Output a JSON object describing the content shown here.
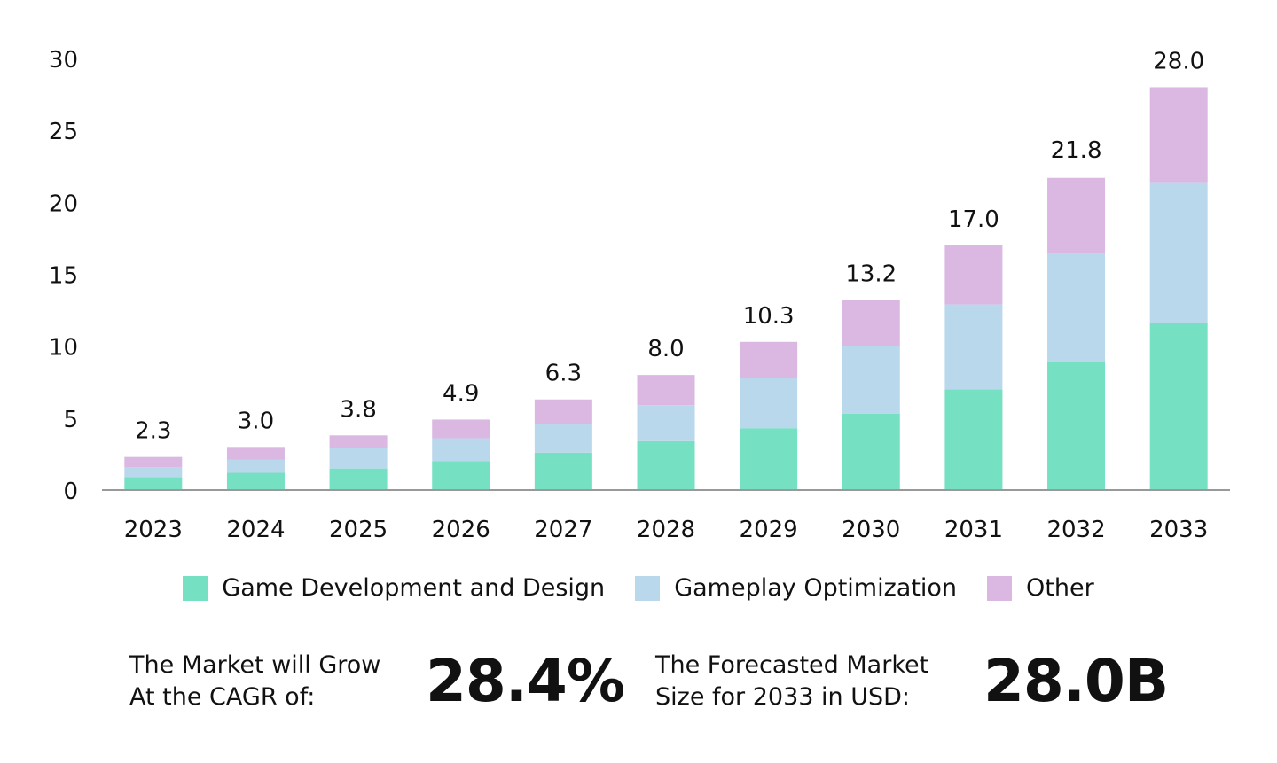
{
  "chart_data": {
    "type": "bar",
    "stacked": true,
    "categories": [
      "2023",
      "2024",
      "2025",
      "2026",
      "2027",
      "2028",
      "2029",
      "2030",
      "2031",
      "2032",
      "2033"
    ],
    "series": [
      {
        "name": "Game Development and Design",
        "color": "#76e0c2",
        "values": [
          0.9,
          1.2,
          1.5,
          2.0,
          2.6,
          3.4,
          4.3,
          5.3,
          7.0,
          8.9,
          11.6
        ]
      },
      {
        "name": "Gameplay Optimization",
        "color": "#bad8ec",
        "values": [
          0.7,
          0.9,
          1.4,
          1.6,
          2.0,
          2.5,
          3.5,
          4.7,
          5.9,
          7.6,
          9.8
        ]
      },
      {
        "name": "Other",
        "color": "#dbb8e2",
        "values": [
          0.7,
          0.9,
          0.9,
          1.3,
          1.7,
          2.1,
          2.5,
          3.2,
          4.1,
          5.2,
          6.6
        ]
      }
    ],
    "totals": [
      "2.3",
      "3.0",
      "3.8",
      "4.9",
      "6.3",
      "8.0",
      "10.3",
      "13.2",
      "17.0",
      "21.8",
      "28.0"
    ],
    "yticks": [
      "0",
      "5",
      "10",
      "15",
      "20",
      "25",
      "30"
    ],
    "ylim": [
      0,
      30
    ],
    "grid": false,
    "legend_position": "bottom"
  },
  "stats": {
    "cagr_label_1": "The Market will Grow",
    "cagr_label_2": "At the CAGR of:",
    "cagr_value": "28.4%",
    "size_label_1": "The Forecasted Market",
    "size_label_2": "Size for 2033 in USD:",
    "size_value": "28.0B"
  }
}
